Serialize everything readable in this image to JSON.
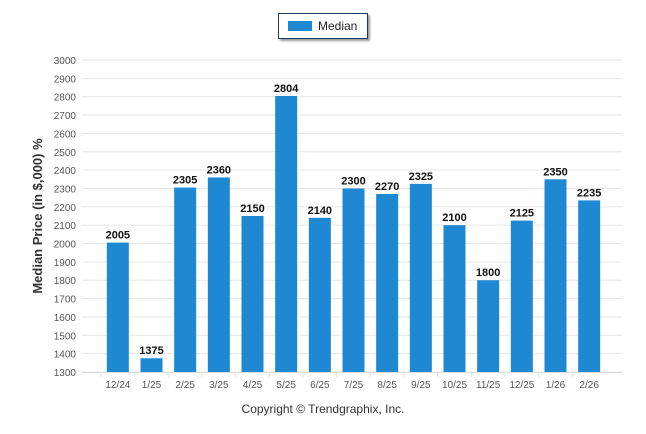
{
  "chart_data": {
    "type": "bar",
    "categories": [
      "12/24",
      "1/25",
      "2/25",
      "3/25",
      "4/25",
      "5/25",
      "6/25",
      "7/25",
      "8/25",
      "9/25",
      "10/25",
      "11/25",
      "12/25",
      "1/26",
      "2/26"
    ],
    "series": [
      {
        "name": "Median",
        "values": [
          2005,
          1375,
          2305,
          2360,
          2150,
          2804,
          2140,
          2300,
          2270,
          2325,
          2100,
          1800,
          2125,
          2350,
          2235
        ]
      }
    ],
    "ylabel": "Median Price (in $,000) %",
    "xlabel": "",
    "ylim": [
      1300,
      3000
    ],
    "yticks": [
      1300,
      1400,
      1500,
      1600,
      1700,
      1800,
      1900,
      2000,
      2100,
      2200,
      2300,
      2400,
      2500,
      2600,
      2700,
      2800,
      2900,
      3000
    ],
    "grid": true,
    "legend_position": "top-center",
    "color": "#1f88d2"
  },
  "copyright": "Copyright © Trendgraphix, Inc."
}
